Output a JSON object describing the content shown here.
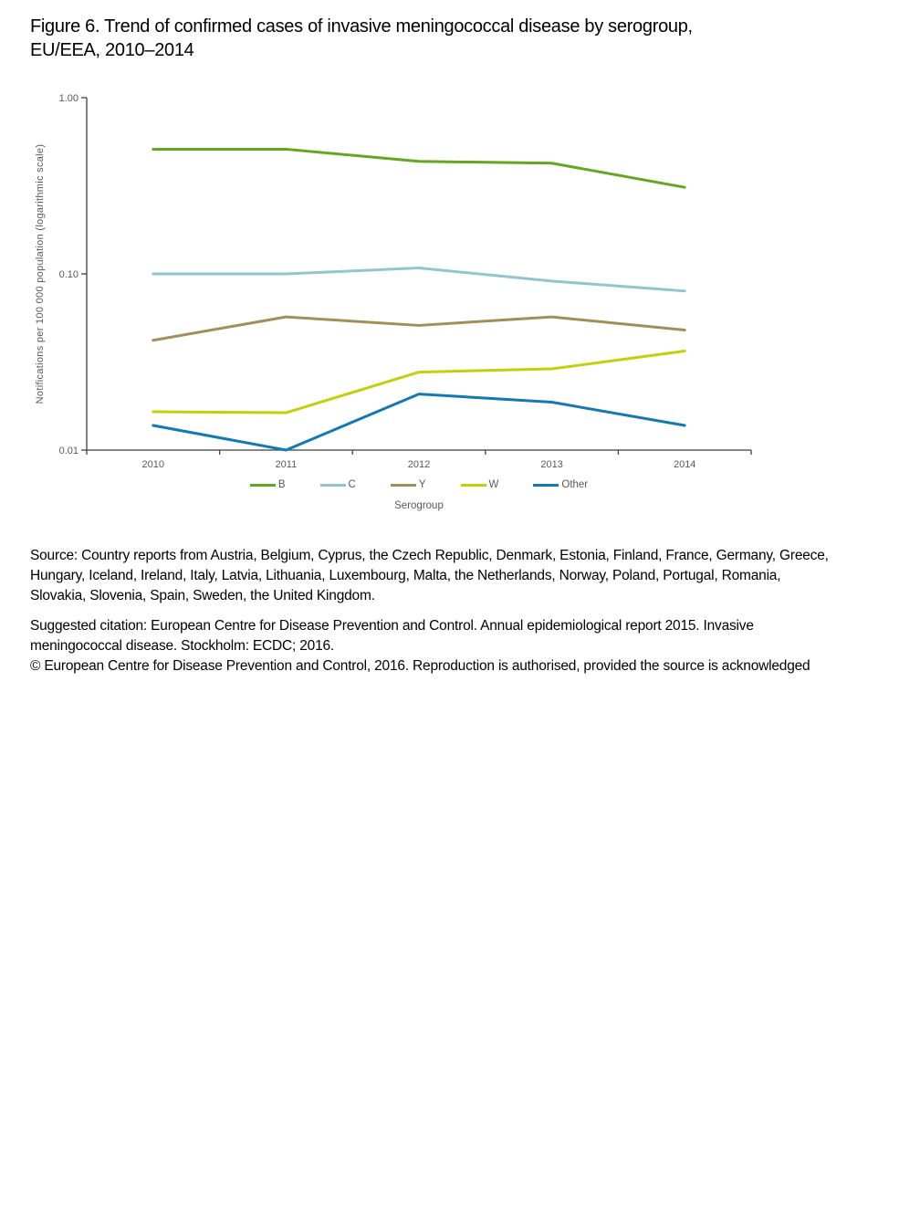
{
  "page": {
    "title_lines": [
      "Figure 6. Trend of confirmed cases of invasive meningococcal disease by serogroup,",
      "EU/EEA, 2010–2014"
    ]
  },
  "chart_data": {
    "type": "line",
    "x": [
      "2010",
      "2011",
      "2012",
      "2013",
      "2014"
    ],
    "xlabel": "",
    "ylabel": "Notifications per 100 000 population (logarithmic scale)",
    "y_scale": "log",
    "ylim": [
      0.01,
      1.0
    ],
    "y_ticks": [
      {
        "label": "1.00",
        "value": 1.0
      },
      {
        "label": "0.10",
        "value": 0.1
      },
      {
        "label": "0.01",
        "value": 0.01
      }
    ],
    "grid": false,
    "legend_position": "bottom",
    "legend_title": "Serogroup",
    "series": [
      {
        "name": "B",
        "color": "#64A620",
        "values": [
          0.51,
          0.51,
          0.435,
          0.425,
          0.31
        ]
      },
      {
        "name": "C",
        "color": "#92C5D0",
        "values": [
          0.1,
          0.1,
          0.108,
          0.091,
          0.08
        ]
      },
      {
        "name": "Y",
        "color": "#A08F5B",
        "values": [
          0.042,
          0.057,
          0.051,
          0.057,
          0.048
        ]
      },
      {
        "name": "W",
        "color": "#C2D009",
        "values": [
          0.0165,
          0.0163,
          0.0277,
          0.0289,
          0.0365
        ]
      },
      {
        "name": "Other",
        "color": "#1279B2",
        "values": [
          0.0138,
          0.01,
          0.0208,
          0.0187,
          0.0138
        ]
      }
    ],
    "axis_color": "#3F3F3F",
    "tick_text_color": "#595959"
  },
  "footer": {
    "source_lines": [
      "Source: Country reports from Austria, Belgium, Cyprus, the Czech Republic, Denmark, Estonia, Finland, France, Germany, Greece,",
      "Hungary, Iceland, Ireland, Italy, Latvia, Lithuania, Luxembourg, Malta, the Netherlands, Norway, Poland, Portugal, Romania,",
      "Slovakia, Slovenia, Spain, Sweden, the United Kingdom."
    ],
    "citation_lines": [
      "Suggested citation: European Centre for Disease Prevention and Control. Annual epidemiological report 2015. Invasive",
      "meningococcal disease. Stockholm: ECDC; 2016.",
      "© European Centre for Disease Prevention and Control, 2016. Reproduction is authorised, provided the source is acknowledged"
    ]
  }
}
